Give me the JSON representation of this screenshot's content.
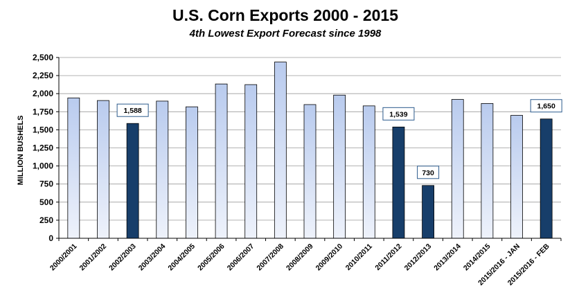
{
  "chart_data": {
    "type": "bar",
    "title": "U.S. Corn Exports 2000 - 2015",
    "subtitle": "4th Lowest Export Forecast since 1998",
    "ylabel": "MILLION BUSHELS",
    "xlabel": "",
    "ylim": [
      0,
      2500
    ],
    "yticks": [
      0,
      250,
      500,
      750,
      1000,
      1250,
      1500,
      1750,
      2000,
      2250,
      2500
    ],
    "ytick_labels": [
      "0",
      "250",
      "500",
      "750",
      "1,000",
      "1,250",
      "1,500",
      "1,750",
      "2,000",
      "2,250",
      "2,500"
    ],
    "grid": true,
    "categories": [
      "2000/2001",
      "2001/2002",
      "2002/2003",
      "2003/2004",
      "2004/2005",
      "2005/2006",
      "2006/2007",
      "2007/2008",
      "2008/2009",
      "2009/2010",
      "2010/2011",
      "2011/2012",
      "2012/2013",
      "2013/2014",
      "2014/2015",
      "2015/2016 - JAN",
      "2015/2016 - FEB"
    ],
    "values": [
      1941,
      1905,
      1588,
      1897,
      1818,
      2134,
      2125,
      2437,
      1849,
      1980,
      1831,
      1539,
      730,
      1920,
      1864,
      1700,
      1650
    ],
    "highlighted": [
      false,
      false,
      true,
      false,
      false,
      false,
      false,
      false,
      false,
      false,
      false,
      true,
      true,
      false,
      false,
      false,
      true
    ],
    "data_labels": [
      "",
      "",
      "1,588",
      "",
      "",
      "",
      "",
      "",
      "",
      "",
      "",
      "1,539",
      "730",
      "",
      "",
      "",
      "1,650"
    ],
    "colors": {
      "light_top": "#b9cbee",
      "light_bottom": "#eef2fb",
      "dark": "#173e6a",
      "label_border": "#2b5a8c"
    }
  }
}
